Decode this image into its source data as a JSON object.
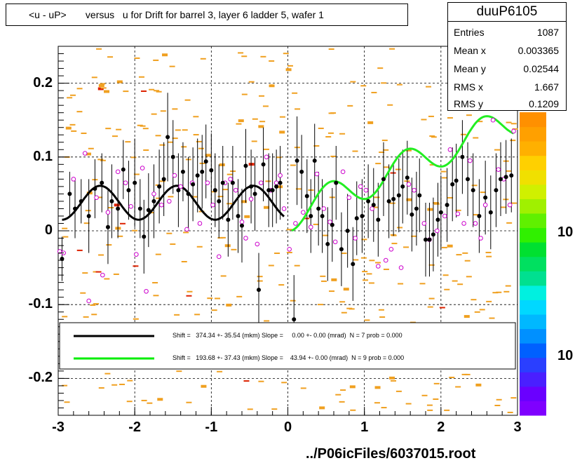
{
  "title": "<u - uP>       versus   u for Drift for barrel 3, layer 6 ladder 5, wafer 1",
  "stats": {
    "name": "duuP6105",
    "rows": [
      {
        "key": "Entries",
        "value": "1087"
      },
      {
        "key": "Mean x",
        "value": "0.003365"
      },
      {
        "key": "Mean y",
        "value": "0.02544"
      },
      {
        "key": "RMS x",
        "value": "1.667"
      },
      {
        "key": "RMS y",
        "value": "0.1209"
      }
    ]
  },
  "footer": "../P06icFiles/6037015.root",
  "palette_labels": [
    "10",
    "10"
  ],
  "legend": [
    {
      "text": "Shift =   374.34 +- 35.54 (mkm) Slope =     0.00 +- 0.00 (mrad)  N = 7 prob = 0.000",
      "color": "#000000"
    },
    {
      "text": "Shift =   193.68 +- 37.43 (mkm) Slope =    43.94 +- 0.00 (mrad)  N = 9 prob = 0.000",
      "color": "#00ee00"
    }
  ],
  "chart_data": {
    "type": "scatter",
    "xlim": [
      -3,
      3
    ],
    "ylim": [
      -0.25,
      0.25
    ],
    "x_ticks": [
      -3,
      -2,
      -1,
      0,
      1,
      2,
      3
    ],
    "x_tick_labels": [
      "-3",
      "-2",
      "-1",
      "0",
      "1",
      "2",
      "3"
    ],
    "y_ticks": [
      -0.2,
      -0.1,
      0,
      0.1,
      0.2
    ],
    "y_tick_labels": [
      "-0.2",
      "-0.1",
      "0",
      "0.1",
      "0.2"
    ],
    "grid": true,
    "profile_points": [
      {
        "x": -2.95,
        "y": -0.038,
        "err": 0.03
      },
      {
        "x": -2.85,
        "y": 0.05,
        "err": 0.03
      },
      {
        "x": -2.78,
        "y": 0.03,
        "err": 0.04
      },
      {
        "x": -2.7,
        "y": 0.04,
        "err": 0.03
      },
      {
        "x": -2.6,
        "y": 0.02,
        "err": 0.05
      },
      {
        "x": -2.52,
        "y": 0.057,
        "err": 0.04
      },
      {
        "x": -2.43,
        "y": 0.065,
        "err": 0.04
      },
      {
        "x": -2.35,
        "y": 0.005,
        "err": 0.05
      },
      {
        "x": -2.3,
        "y": 0.04,
        "err": 0.05
      },
      {
        "x": -2.22,
        "y": 0.03,
        "err": 0.04
      },
      {
        "x": -2.15,
        "y": 0.083,
        "err": 0.04
      },
      {
        "x": -2.08,
        "y": 0.055,
        "err": 0.04
      },
      {
        "x": -2.0,
        "y": 0.065,
        "err": 0.06
      },
      {
        "x": -1.93,
        "y": 0.03,
        "err": 0.04
      },
      {
        "x": -1.88,
        "y": -0.008,
        "err": 0.05
      },
      {
        "x": -1.82,
        "y": 0.028,
        "err": 0.05
      },
      {
        "x": -1.75,
        "y": 0.04,
        "err": 0.05
      },
      {
        "x": -1.68,
        "y": 0.06,
        "err": 0.05
      },
      {
        "x": -1.62,
        "y": 0.07,
        "err": 0.05
      },
      {
        "x": -1.57,
        "y": 0.127,
        "err": 0.06
      },
      {
        "x": -1.5,
        "y": 0.1,
        "err": 0.05
      },
      {
        "x": -1.43,
        "y": 0.055,
        "err": 0.05
      },
      {
        "x": -1.37,
        "y": 0.08,
        "err": 0.04
      },
      {
        "x": -1.3,
        "y": 0.05,
        "err": 0.05
      },
      {
        "x": -1.24,
        "y": 0.063,
        "err": 0.05
      },
      {
        "x": -1.18,
        "y": 0.075,
        "err": 0.05
      },
      {
        "x": -1.12,
        "y": 0.08,
        "err": 0.05
      },
      {
        "x": -1.07,
        "y": 0.094,
        "err": 0.05
      },
      {
        "x": -1.0,
        "y": 0.082,
        "err": 0.05
      },
      {
        "x": -0.95,
        "y": 0.055,
        "err": 0.05
      },
      {
        "x": -0.9,
        "y": 0.04,
        "err": 0.05
      },
      {
        "x": -0.85,
        "y": 0.065,
        "err": 0.05
      },
      {
        "x": -0.78,
        "y": 0.015,
        "err": 0.05
      },
      {
        "x": -0.72,
        "y": 0.065,
        "err": 0.05
      },
      {
        "x": -0.65,
        "y": 0.02,
        "err": 0.05
      },
      {
        "x": -0.6,
        "y": 0.007,
        "err": 0.05
      },
      {
        "x": -0.55,
        "y": 0.088,
        "err": 0.05
      },
      {
        "x": -0.48,
        "y": 0.06,
        "err": 0.05
      },
      {
        "x": -0.43,
        "y": 0.05,
        "err": 0.05
      },
      {
        "x": -0.38,
        "y": -0.08,
        "err": 0.05
      },
      {
        "x": -0.32,
        "y": 0.09,
        "err": 0.05
      },
      {
        "x": -0.25,
        "y": 0.055,
        "err": 0.05
      },
      {
        "x": -0.2,
        "y": 0.055,
        "err": 0.05
      },
      {
        "x": -0.15,
        "y": 0.06,
        "err": 0.05
      },
      {
        "x": -0.1,
        "y": 0.065,
        "err": 0.05
      },
      {
        "x": 0.08,
        "y": -0.12,
        "err": 0.06
      },
      {
        "x": 0.12,
        "y": 0.095,
        "err": 0.06
      },
      {
        "x": 0.18,
        "y": 0.08,
        "err": 0.05
      },
      {
        "x": 0.25,
        "y": 0.047,
        "err": 0.05
      },
      {
        "x": 0.3,
        "y": 0.02,
        "err": 0.05
      },
      {
        "x": 0.35,
        "y": 0.095,
        "err": 0.05
      },
      {
        "x": 0.4,
        "y": 0.03,
        "err": 0.05
      },
      {
        "x": 0.45,
        "y": 0.02,
        "err": 0.05
      },
      {
        "x": 0.52,
        "y": -0.018,
        "err": 0.05
      },
      {
        "x": 0.58,
        "y": 0.008,
        "err": 0.05
      },
      {
        "x": 0.63,
        "y": 0.065,
        "err": 0.05
      },
      {
        "x": 0.7,
        "y": -0.025,
        "err": 0.05
      },
      {
        "x": 0.78,
        "y": 0.0,
        "err": 0.05
      },
      {
        "x": 0.85,
        "y": -0.045,
        "err": 0.05
      },
      {
        "x": 0.9,
        "y": 0.017,
        "err": 0.05
      },
      {
        "x": 0.97,
        "y": 0.02,
        "err": 0.05
      },
      {
        "x": 1.05,
        "y": 0.04,
        "err": 0.05
      },
      {
        "x": 1.12,
        "y": 0.035,
        "err": 0.05
      },
      {
        "x": 1.18,
        "y": 0.015,
        "err": 0.05
      },
      {
        "x": 1.25,
        "y": 0.07,
        "err": 0.05
      },
      {
        "x": 1.32,
        "y": 0.04,
        "err": 0.05
      },
      {
        "x": 1.38,
        "y": 0.043,
        "err": 0.05
      },
      {
        "x": 1.45,
        "y": 0.048,
        "err": 0.05
      },
      {
        "x": 1.5,
        "y": 0.06,
        "err": 0.05
      },
      {
        "x": 1.56,
        "y": 0.072,
        "err": 0.05
      },
      {
        "x": 1.62,
        "y": 0.022,
        "err": 0.05
      },
      {
        "x": 1.68,
        "y": 0.03,
        "err": 0.05
      },
      {
        "x": 1.72,
        "y": 0.048,
        "err": 0.05
      },
      {
        "x": 1.8,
        "y": -0.012,
        "err": 0.05
      },
      {
        "x": 1.85,
        "y": -0.012,
        "err": 0.05
      },
      {
        "x": 1.9,
        "y": -0.005,
        "err": 0.05
      },
      {
        "x": 1.96,
        "y": 0.015,
        "err": 0.05
      },
      {
        "x": 2.0,
        "y": 0.025,
        "err": 0.05
      },
      {
        "x": 2.08,
        "y": 0.035,
        "err": 0.05
      },
      {
        "x": 2.15,
        "y": 0.063,
        "err": 0.05
      },
      {
        "x": 2.2,
        "y": 0.068,
        "err": 0.05
      },
      {
        "x": 2.28,
        "y": 0.1,
        "err": 0.05
      },
      {
        "x": 2.35,
        "y": 0.07,
        "err": 0.05
      },
      {
        "x": 2.42,
        "y": 0.055,
        "err": 0.05
      },
      {
        "x": 2.5,
        "y": 0.02,
        "err": 0.05
      },
      {
        "x": 2.58,
        "y": 0.045,
        "err": 0.05
      },
      {
        "x": 2.65,
        "y": 0.025,
        "err": 0.05
      },
      {
        "x": 2.72,
        "y": 0.055,
        "err": 0.05
      },
      {
        "x": 2.78,
        "y": 0.07,
        "err": 0.05
      },
      {
        "x": 2.85,
        "y": 0.073,
        "err": 0.05
      },
      {
        "x": 2.92,
        "y": 0.075,
        "err": 0.05
      }
    ],
    "open_points": [
      {
        "x": -2.98,
        "y": -0.028
      },
      {
        "x": -2.93,
        "y": -0.03
      },
      {
        "x": -2.8,
        "y": 0.07
      },
      {
        "x": -2.65,
        "y": 0.105
      },
      {
        "x": -2.6,
        "y": -0.095
      },
      {
        "x": -2.5,
        "y": 0.045
      },
      {
        "x": -2.42,
        "y": -0.06
      },
      {
        "x": -2.35,
        "y": 0.025
      },
      {
        "x": -2.22,
        "y": 0.08
      },
      {
        "x": -2.12,
        "y": 0.065
      },
      {
        "x": -2.05,
        "y": 0.033
      },
      {
        "x": -1.98,
        "y": -0.032
      },
      {
        "x": -1.9,
        "y": 0.085
      },
      {
        "x": -1.85,
        "y": -0.082
      },
      {
        "x": -1.75,
        "y": 0.05
      },
      {
        "x": -1.65,
        "y": 0.035
      },
      {
        "x": -1.55,
        "y": 0.04
      },
      {
        "x": -1.48,
        "y": 0.075
      },
      {
        "x": -1.4,
        "y": 0.06
      },
      {
        "x": -1.32,
        "y": 0.002
      },
      {
        "x": -1.25,
        "y": 0.065
      },
      {
        "x": -1.15,
        "y": 0.01
      },
      {
        "x": -1.05,
        "y": 0.065
      },
      {
        "x": -0.98,
        "y": 0.035
      },
      {
        "x": -0.9,
        "y": -0.035
      },
      {
        "x": -0.82,
        "y": 0.065
      },
      {
        "x": -0.75,
        "y": 0.07
      },
      {
        "x": -0.68,
        "y": 0.055
      },
      {
        "x": -0.6,
        "y": 0.012
      },
      {
        "x": -0.55,
        "y": -0.01
      },
      {
        "x": -0.48,
        "y": 0.043
      },
      {
        "x": -0.4,
        "y": -0.018
      },
      {
        "x": -0.35,
        "y": 0.065
      },
      {
        "x": -0.28,
        "y": 0.1
      },
      {
        "x": -0.22,
        "y": 0.055
      },
      {
        "x": -0.15,
        "y": 0.065
      },
      {
        "x": -0.1,
        "y": 0.075
      },
      {
        "x": -0.05,
        "y": 0.03
      },
      {
        "x": 0.02,
        "y": -0.025
      },
      {
        "x": 0.1,
        "y": 0.01
      },
      {
        "x": 0.2,
        "y": 0.025
      },
      {
        "x": 0.3,
        "y": 0.005
      },
      {
        "x": 0.38,
        "y": 0.077
      },
      {
        "x": 0.47,
        "y": 0.03
      },
      {
        "x": 0.55,
        "y": 0.012
      },
      {
        "x": 0.62,
        "y": -0.015
      },
      {
        "x": 0.72,
        "y": 0.08
      },
      {
        "x": 0.8,
        "y": 0.045
      },
      {
        "x": 0.88,
        "y": -0.01
      },
      {
        "x": 0.95,
        "y": 0.06
      },
      {
        "x": 1.02,
        "y": 0.055
      },
      {
        "x": 1.1,
        "y": 0.03
      },
      {
        "x": 1.18,
        "y": -0.048
      },
      {
        "x": 1.28,
        "y": -0.04
      },
      {
        "x": 1.35,
        "y": -0.025
      },
      {
        "x": 1.48,
        "y": -0.05
      },
      {
        "x": 1.58,
        "y": 0.063
      },
      {
        "x": 1.65,
        "y": 0.055
      },
      {
        "x": 1.78,
        "y": 0.01
      },
      {
        "x": 1.85,
        "y": -0.012
      },
      {
        "x": 1.95,
        "y": 0.0
      },
      {
        "x": 2.05,
        "y": 0.02
      },
      {
        "x": 2.12,
        "y": 0.11
      },
      {
        "x": 2.22,
        "y": 0.023
      },
      {
        "x": 2.3,
        "y": 0.01
      },
      {
        "x": 2.38,
        "y": 0.095
      },
      {
        "x": 2.45,
        "y": 0.01
      },
      {
        "x": 2.52,
        "y": -0.01
      },
      {
        "x": 2.58,
        "y": 0.035
      },
      {
        "x": 2.68,
        "y": 0.15
      },
      {
        "x": 2.75,
        "y": 0.083
      },
      {
        "x": 2.82,
        "y": 0.07
      },
      {
        "x": 2.9,
        "y": 0.035
      },
      {
        "x": 2.95,
        "y": 0.135
      }
    ],
    "fit_black": {
      "x_range": [
        -2.95,
        -0.05
      ],
      "center": 0.038,
      "amplitude": 0.023,
      "frequency": 1.0
    },
    "fit_green": {
      "x_range": [
        0.05,
        2.95
      ],
      "center": 0.02,
      "amplitude": 0.022,
      "frequency": 1.0,
      "slope": 0.044
    },
    "palette_colors": [
      "#7f00ff",
      "#6a00ff",
      "#4a1fff",
      "#2a3fff",
      "#0060ff",
      "#0090ff",
      "#00b8ff",
      "#00d8ff",
      "#00f0e0",
      "#00e090",
      "#00e060",
      "#00e030",
      "#30f000",
      "#60f000",
      "#a0f000",
      "#d0f000",
      "#f0e000",
      "#ffd000",
      "#ffb000",
      "#ffa000",
      "#ff9000"
    ]
  }
}
